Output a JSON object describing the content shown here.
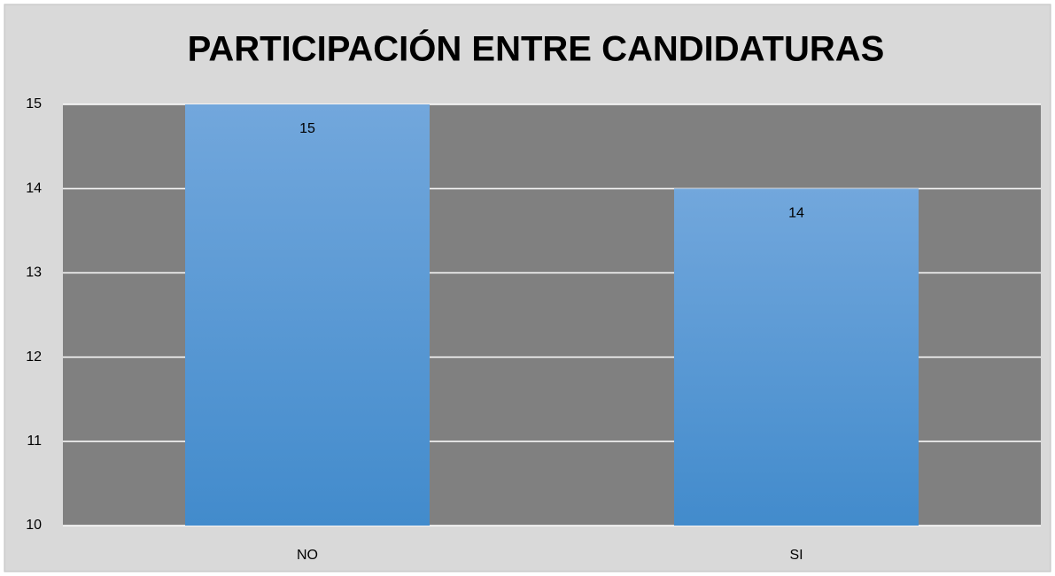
{
  "chart_data": {
    "type": "bar",
    "title": "PARTICIPACIÓN ENTRE CANDIDATURAS",
    "categories": [
      "NO",
      "SI"
    ],
    "values": [
      15,
      14
    ],
    "color": "#5b9bd5",
    "ylim": [
      10,
      15
    ],
    "yticks": [
      10,
      11,
      12,
      13,
      14,
      15
    ],
    "grid": true
  }
}
